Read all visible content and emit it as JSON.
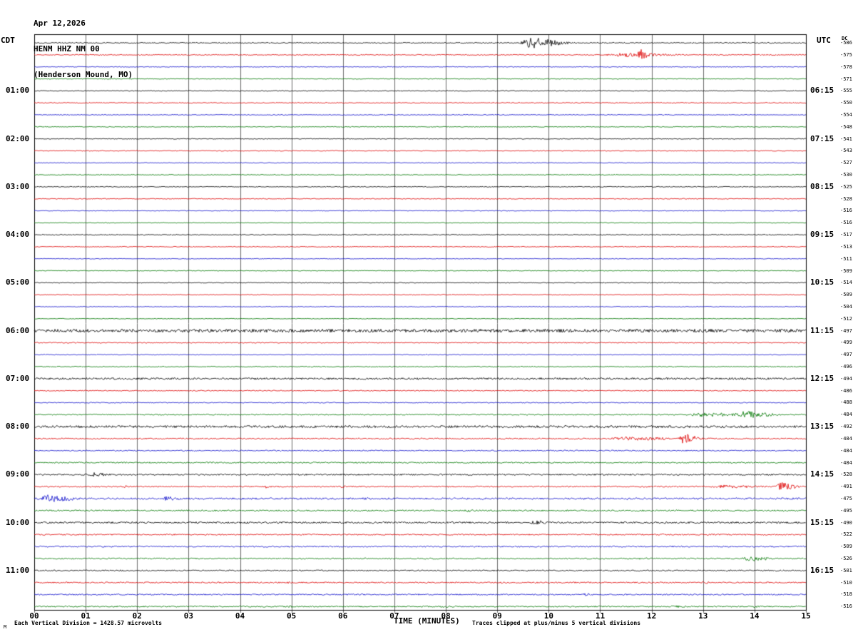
{
  "header": {
    "date": "Apr 12,2026",
    "station": "HENM HHZ NM 00",
    "location": "(Henderson Mound, MO)"
  },
  "axes": {
    "left_tz": "CDT",
    "right_tz": "UTC",
    "dc_label": "DC",
    "x_label": "TIME (MINUTES)",
    "x_ticks": [
      "00",
      "01",
      "02",
      "03",
      "04",
      "05",
      "06",
      "07",
      "08",
      "09",
      "10",
      "11",
      "12",
      "13",
      "14",
      "15"
    ]
  },
  "footer": {
    "left": "Each Vertical Division = 1428.57 microvolts",
    "right": "Traces clipped at plus/minus 5 vertical divisions",
    "mark": "M"
  },
  "chart_data": {
    "type": "line",
    "title": "HENM HHZ NM 00 (Henderson Mound, MO) helicorder, Apr 12,2026",
    "xlabel": "TIME (MINUTES)",
    "x_range": [
      0,
      15
    ],
    "minutes_per_row": 15,
    "grid": true,
    "colors": {
      "black": "#000000",
      "red": "#dd0000",
      "blue": "#1111cc",
      "green": "#007700"
    },
    "rows": [
      {
        "left": "",
        "right": "",
        "color": "black",
        "dc": -586,
        "noise": 0.7,
        "events": [
          [
            9.4,
            10.7,
            8
          ]
        ]
      },
      {
        "left": "",
        "right": "",
        "color": "red",
        "dc": -575,
        "noise": 0.7,
        "events": [
          [
            11.0,
            13.3,
            3.2
          ],
          [
            11.7,
            12.1,
            9
          ]
        ]
      },
      {
        "left": "",
        "right": "",
        "color": "blue",
        "dc": -578,
        "noise": 0.55,
        "events": []
      },
      {
        "left": "",
        "right": "",
        "color": "green",
        "dc": -571,
        "noise": 0.55,
        "events": []
      },
      {
        "left": "01:00",
        "right": "06:15",
        "color": "black",
        "dc": -555,
        "noise": 0.6,
        "events": []
      },
      {
        "left": "",
        "right": "",
        "color": "red",
        "dc": -550,
        "noise": 0.6,
        "events": []
      },
      {
        "left": "",
        "right": "",
        "color": "blue",
        "dc": -554,
        "noise": 0.55,
        "events": []
      },
      {
        "left": "",
        "right": "",
        "color": "green",
        "dc": -548,
        "noise": 0.55,
        "events": []
      },
      {
        "left": "02:00",
        "right": "07:15",
        "color": "black",
        "dc": -541,
        "noise": 0.6,
        "events": []
      },
      {
        "left": "",
        "right": "",
        "color": "red",
        "dc": -543,
        "noise": 0.6,
        "events": []
      },
      {
        "left": "",
        "right": "",
        "color": "blue",
        "dc": -527,
        "noise": 0.5,
        "events": []
      },
      {
        "left": "",
        "right": "",
        "color": "green",
        "dc": -530,
        "noise": 0.55,
        "events": []
      },
      {
        "left": "03:00",
        "right": "08:15",
        "color": "black",
        "dc": -525,
        "noise": 0.6,
        "events": []
      },
      {
        "left": "",
        "right": "",
        "color": "red",
        "dc": -528,
        "noise": 0.6,
        "events": []
      },
      {
        "left": "",
        "right": "",
        "color": "blue",
        "dc": -516,
        "noise": 0.5,
        "events": []
      },
      {
        "left": "",
        "right": "",
        "color": "green",
        "dc": -516,
        "noise": 0.5,
        "events": []
      },
      {
        "left": "04:00",
        "right": "09:15",
        "color": "black",
        "dc": -517,
        "noise": 0.6,
        "events": []
      },
      {
        "left": "",
        "right": "",
        "color": "red",
        "dc": -513,
        "noise": 0.55,
        "events": []
      },
      {
        "left": "",
        "right": "",
        "color": "blue",
        "dc": -511,
        "noise": 0.5,
        "events": []
      },
      {
        "left": "",
        "right": "",
        "color": "green",
        "dc": -509,
        "noise": 0.5,
        "events": []
      },
      {
        "left": "05:00",
        "right": "10:15",
        "color": "black",
        "dc": -514,
        "noise": 0.6,
        "events": []
      },
      {
        "left": "",
        "right": "",
        "color": "red",
        "dc": -509,
        "noise": 0.55,
        "events": []
      },
      {
        "left": "",
        "right": "",
        "color": "blue",
        "dc": -504,
        "noise": 0.5,
        "events": []
      },
      {
        "left": "",
        "right": "",
        "color": "green",
        "dc": -512,
        "noise": 0.5,
        "events": []
      },
      {
        "left": "06:00",
        "right": "11:15",
        "color": "black",
        "dc": -497,
        "noise": 2.2,
        "events": []
      },
      {
        "left": "",
        "right": "",
        "color": "red",
        "dc": -499,
        "noise": 0.7,
        "events": []
      },
      {
        "left": "",
        "right": "",
        "color": "blue",
        "dc": -497,
        "noise": 0.55,
        "events": []
      },
      {
        "left": "",
        "right": "",
        "color": "green",
        "dc": -496,
        "noise": 0.6,
        "events": []
      },
      {
        "left": "07:00",
        "right": "12:15",
        "color": "black",
        "dc": -494,
        "noise": 1.3,
        "events": []
      },
      {
        "left": "",
        "right": "",
        "color": "red",
        "dc": -486,
        "noise": 0.7,
        "events": []
      },
      {
        "left": "",
        "right": "",
        "color": "blue",
        "dc": -488,
        "noise": 0.65,
        "events": []
      },
      {
        "left": "",
        "right": "",
        "color": "green",
        "dc": -484,
        "noise": 0.8,
        "events": [
          [
            12.5,
            15,
            3
          ],
          [
            13.6,
            14.7,
            6.5
          ]
        ]
      },
      {
        "left": "08:00",
        "right": "13:15",
        "color": "black",
        "dc": -492,
        "noise": 1.6,
        "events": []
      },
      {
        "left": "",
        "right": "",
        "color": "red",
        "dc": -484,
        "noise": 0.9,
        "events": [
          [
            11.0,
            13.6,
            3
          ],
          [
            12.5,
            13.1,
            8
          ]
        ]
      },
      {
        "left": "",
        "right": "",
        "color": "blue",
        "dc": -484,
        "noise": 0.8,
        "events": []
      },
      {
        "left": "",
        "right": "",
        "color": "green",
        "dc": -484,
        "noise": 0.9,
        "events": []
      },
      {
        "left": "09:00",
        "right": "14:15",
        "color": "black",
        "dc": -528,
        "noise": 1.0,
        "events": [
          [
            1.0,
            1.8,
            3.2
          ]
        ]
      },
      {
        "left": "",
        "right": "",
        "color": "red",
        "dc": -491,
        "noise": 0.9,
        "events": [
          [
            1.7,
            2.1,
            2.2
          ],
          [
            4.4,
            4.9,
            2.2
          ],
          [
            5.9,
            6.3,
            1.8
          ],
          [
            13.0,
            15.0,
            2.5
          ],
          [
            14.4,
            15.0,
            7
          ]
        ]
      },
      {
        "left": "",
        "right": "",
        "color": "blue",
        "dc": -475,
        "noise": 1.2,
        "events": [
          [
            0.0,
            1.3,
            5.5
          ],
          [
            2.4,
            3.2,
            3.5
          ],
          [
            5.0,
            5.6,
            1.8
          ],
          [
            6.3,
            6.9,
            1.8
          ],
          [
            8.6,
            9.1,
            1.8
          ],
          [
            11.4,
            11.9,
            1.8
          ]
        ]
      },
      {
        "left": "",
        "right": "",
        "color": "green",
        "dc": -495,
        "noise": 1.0,
        "events": [
          [
            8.3,
            8.9,
            1.8
          ]
        ]
      },
      {
        "left": "10:00",
        "right": "15:15",
        "color": "black",
        "dc": -490,
        "noise": 1.2,
        "events": [
          [
            4.0,
            4.5,
            1.8
          ],
          [
            9.6,
            10.3,
            3.8
          ]
        ]
      },
      {
        "left": "",
        "right": "",
        "color": "red",
        "dc": -522,
        "noise": 0.9,
        "events": [
          [
            13.0,
            13.5,
            1.8
          ]
        ]
      },
      {
        "left": "",
        "right": "",
        "color": "blue",
        "dc": -509,
        "noise": 0.9,
        "events": []
      },
      {
        "left": "",
        "right": "",
        "color": "green",
        "dc": -526,
        "noise": 0.9,
        "events": [
          [
            11.7,
            12.2,
            1.8
          ],
          [
            13.7,
            14.7,
            4
          ]
        ]
      },
      {
        "left": "11:00",
        "right": "16:15",
        "color": "black",
        "dc": -501,
        "noise": 0.9,
        "events": [
          [
            1.5,
            2.0,
            1.4
          ]
        ]
      },
      {
        "left": "",
        "right": "",
        "color": "red",
        "dc": -510,
        "noise": 0.9,
        "events": [
          [
            4.8,
            5.3,
            1.8
          ],
          [
            9.0,
            9.5,
            1.6
          ],
          [
            12.9,
            13.4,
            1.8
          ]
        ]
      },
      {
        "left": "",
        "right": "",
        "color": "blue",
        "dc": -518,
        "noise": 0.9,
        "events": [
          [
            10.6,
            11.1,
            2.2
          ]
        ]
      },
      {
        "left": "",
        "right": "",
        "color": "green",
        "dc": -516,
        "noise": 0.9,
        "events": [
          [
            4.8,
            5.5,
            1.6
          ],
          [
            7.8,
            8.5,
            1.6
          ],
          [
            12.3,
            13.0,
            2
          ],
          [
            13.9,
            14.4,
            1.8
          ]
        ]
      }
    ]
  }
}
